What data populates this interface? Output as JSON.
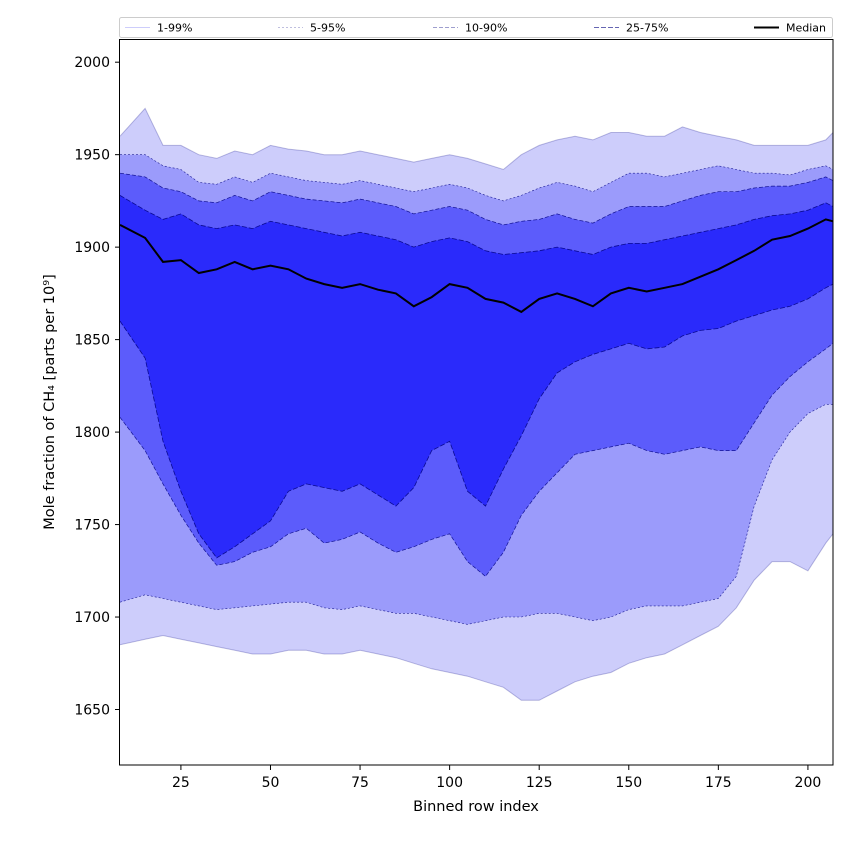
{
  "chart_data": {
    "type": "area",
    "xlabel": "Binned row index",
    "ylabel": "Mole fraction of CH₄ [parts per 10⁹]",
    "xlim": [
      8,
      207
    ],
    "ylim": [
      1620,
      2012
    ],
    "xticks": [
      25,
      50,
      75,
      100,
      125,
      150,
      175,
      200
    ],
    "yticks": [
      1650,
      1700,
      1750,
      1800,
      1850,
      1900,
      1950,
      2000
    ],
    "grid": false,
    "legend": {
      "placement": "top",
      "entries": [
        "1-99%",
        "5-95%",
        "10-90%",
        "25-75%",
        "Median"
      ]
    },
    "colors": {
      "band_1_99": "#cdcdfb",
      "band_5_95": "#9b9bfb",
      "band_10_90": "#5c5cfb",
      "band_25_75": "#2a2afb",
      "median": "#000000",
      "edge": "#000080"
    },
    "x": [
      8,
      15,
      20,
      25,
      30,
      35,
      40,
      45,
      50,
      55,
      60,
      65,
      70,
      75,
      80,
      85,
      90,
      95,
      100,
      105,
      110,
      115,
      120,
      125,
      130,
      135,
      140,
      145,
      150,
      155,
      160,
      165,
      170,
      175,
      180,
      185,
      190,
      195,
      200,
      205,
      207
    ],
    "series": [
      {
        "name": "Median",
        "values": [
          1912,
          1905,
          1892,
          1893,
          1886,
          1888,
          1892,
          1888,
          1890,
          1888,
          1883,
          1880,
          1878,
          1880,
          1877,
          1875,
          1868,
          1873,
          1880,
          1878,
          1872,
          1870,
          1865,
          1872,
          1875,
          1872,
          1868,
          1875,
          1878,
          1876,
          1878,
          1880,
          1884,
          1888,
          1893,
          1898,
          1904,
          1906,
          1910,
          1915,
          1914
        ]
      },
      {
        "name": "25-75% upper",
        "values": [
          1928,
          1920,
          1915,
          1918,
          1912,
          1910,
          1912,
          1910,
          1914,
          1912,
          1910,
          1908,
          1906,
          1908,
          1906,
          1904,
          1900,
          1903,
          1905,
          1903,
          1898,
          1896,
          1897,
          1898,
          1900,
          1898,
          1896,
          1900,
          1902,
          1902,
          1904,
          1906,
          1908,
          1910,
          1912,
          1915,
          1917,
          1918,
          1920,
          1924,
          1922
        ]
      },
      {
        "name": "25-75% lower",
        "values": [
          1860,
          1840,
          1795,
          1768,
          1745,
          1732,
          1738,
          1745,
          1752,
          1768,
          1772,
          1770,
          1768,
          1772,
          1766,
          1760,
          1770,
          1790,
          1795,
          1768,
          1760,
          1780,
          1798,
          1818,
          1832,
          1838,
          1842,
          1845,
          1848,
          1845,
          1846,
          1852,
          1855,
          1856,
          1860,
          1863,
          1866,
          1868,
          1872,
          1878,
          1880
        ]
      },
      {
        "name": "10-90% upper",
        "values": [
          1940,
          1938,
          1932,
          1930,
          1925,
          1924,
          1928,
          1925,
          1930,
          1928,
          1926,
          1925,
          1924,
          1926,
          1924,
          1922,
          1918,
          1920,
          1922,
          1920,
          1915,
          1912,
          1914,
          1915,
          1918,
          1915,
          1913,
          1918,
          1922,
          1922,
          1922,
          1925,
          1928,
          1930,
          1930,
          1932,
          1933,
          1933,
          1935,
          1938,
          1936
        ]
      },
      {
        "name": "10-90% lower",
        "values": [
          1808,
          1790,
          1772,
          1755,
          1740,
          1728,
          1730,
          1735,
          1738,
          1745,
          1748,
          1740,
          1742,
          1746,
          1740,
          1735,
          1738,
          1742,
          1745,
          1730,
          1722,
          1735,
          1755,
          1768,
          1778,
          1788,
          1790,
          1792,
          1794,
          1790,
          1788,
          1790,
          1792,
          1790,
          1790,
          1805,
          1820,
          1830,
          1838,
          1845,
          1848
        ]
      },
      {
        "name": "5-95% upper",
        "values": [
          1950,
          1950,
          1944,
          1942,
          1935,
          1934,
          1938,
          1935,
          1940,
          1938,
          1936,
          1935,
          1934,
          1936,
          1934,
          1932,
          1930,
          1932,
          1934,
          1932,
          1928,
          1925,
          1928,
          1932,
          1935,
          1933,
          1930,
          1935,
          1940,
          1940,
          1938,
          1940,
          1942,
          1944,
          1942,
          1940,
          1940,
          1939,
          1942,
          1944,
          1942
        ]
      },
      {
        "name": "5-95% lower",
        "values": [
          1708,
          1712,
          1710,
          1708,
          1706,
          1704,
          1705,
          1706,
          1707,
          1708,
          1708,
          1705,
          1704,
          1706,
          1704,
          1702,
          1702,
          1700,
          1698,
          1696,
          1698,
          1700,
          1700,
          1702,
          1702,
          1700,
          1698,
          1700,
          1704,
          1706,
          1706,
          1706,
          1708,
          1710,
          1722,
          1760,
          1785,
          1800,
          1810,
          1815,
          1815
        ]
      },
      {
        "name": "1-99% upper",
        "values": [
          1960,
          1975,
          1955,
          1955,
          1950,
          1948,
          1952,
          1950,
          1955,
          1953,
          1952,
          1950,
          1950,
          1952,
          1950,
          1948,
          1946,
          1948,
          1950,
          1948,
          1945,
          1942,
          1950,
          1955,
          1958,
          1960,
          1958,
          1962,
          1962,
          1960,
          1960,
          1965,
          1962,
          1960,
          1958,
          1955,
          1955,
          1955,
          1955,
          1958,
          1962
        ]
      },
      {
        "name": "1-99% lower",
        "values": [
          1685,
          1688,
          1690,
          1688,
          1686,
          1684,
          1682,
          1680,
          1680,
          1682,
          1682,
          1680,
          1680,
          1682,
          1680,
          1678,
          1675,
          1672,
          1670,
          1668,
          1665,
          1662,
          1655,
          1655,
          1660,
          1665,
          1668,
          1670,
          1675,
          1678,
          1680,
          1685,
          1690,
          1695,
          1705,
          1720,
          1730,
          1730,
          1725,
          1740,
          1745
        ]
      }
    ]
  }
}
